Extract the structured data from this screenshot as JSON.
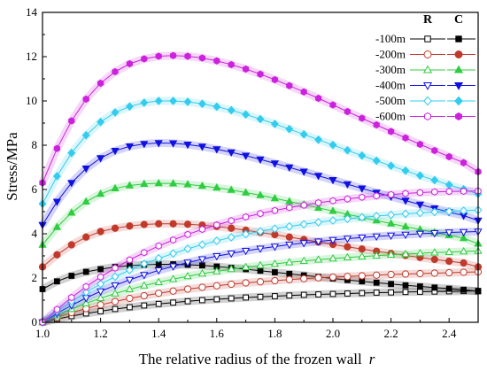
{
  "chart_data": {
    "type": "line",
    "xlabel": "The relative radius of the frozen wall",
    "xlabel_var": "r",
    "ylabel": "Stress/MPa",
    "xlim": [
      1.0,
      2.5
    ],
    "ylim": [
      0,
      14
    ],
    "xticks": [
      "1.0",
      "1.2",
      "1.4",
      "1.6",
      "1.8",
      "2.0",
      "2.2",
      "2.4"
    ],
    "yticks": [
      "0",
      "2",
      "4",
      "6",
      "8",
      "10",
      "12",
      "14"
    ],
    "legend_placement": "top-right",
    "legend_headers": {
      "r": "R",
      "c": "C"
    },
    "r_values": [
      1.0,
      1.05,
      1.1,
      1.15,
      1.2,
      1.25,
      1.3,
      1.35,
      1.4,
      1.45,
      1.5,
      1.55,
      1.6,
      1.65,
      1.7,
      1.75,
      1.8,
      1.85,
      1.9,
      1.95,
      2.0,
      2.05,
      2.1,
      2.15,
      2.2,
      2.25,
      2.3,
      2.35,
      2.4,
      2.45,
      2.5
    ],
    "series": [
      {
        "name": "-100m",
        "color": "#000000",
        "R": [
          0.0,
          0.15,
          0.28,
          0.4,
          0.5,
          0.6,
          0.68,
          0.76,
          0.83,
          0.89,
          0.95,
          1.0,
          1.04,
          1.08,
          1.12,
          1.15,
          1.18,
          1.21,
          1.24,
          1.26,
          1.28,
          1.3,
          1.32,
          1.34,
          1.35,
          1.37,
          1.38,
          1.39,
          1.4,
          1.41,
          1.42
        ],
        "C": [
          1.5,
          1.85,
          2.1,
          2.28,
          2.4,
          2.5,
          2.56,
          2.6,
          2.62,
          2.62,
          2.6,
          2.57,
          2.52,
          2.46,
          2.4,
          2.33,
          2.26,
          2.19,
          2.12,
          2.05,
          1.98,
          1.91,
          1.85,
          1.79,
          1.73,
          1.67,
          1.62,
          1.57,
          1.52,
          1.47,
          1.4
        ]
      },
      {
        "name": "-200m",
        "color": "#c0392b",
        "R": [
          0.0,
          0.23,
          0.44,
          0.62,
          0.79,
          0.94,
          1.08,
          1.2,
          1.31,
          1.41,
          1.5,
          1.58,
          1.65,
          1.72,
          1.78,
          1.83,
          1.88,
          1.93,
          1.97,
          2.01,
          2.04,
          2.07,
          2.1,
          2.13,
          2.16,
          2.18,
          2.2,
          2.22,
          2.24,
          2.26,
          2.28
        ],
        "C": [
          2.5,
          3.05,
          3.5,
          3.85,
          4.1,
          4.25,
          4.35,
          4.42,
          4.45,
          4.45,
          4.43,
          4.39,
          4.33,
          4.25,
          4.16,
          4.06,
          3.96,
          3.85,
          3.74,
          3.63,
          3.52,
          3.41,
          3.31,
          3.21,
          3.11,
          3.02,
          2.93,
          2.84,
          2.76,
          2.68,
          2.5
        ]
      },
      {
        "name": "-300m",
        "color": "#2ecc40",
        "R": [
          0.0,
          0.31,
          0.6,
          0.86,
          1.09,
          1.3,
          1.49,
          1.66,
          1.81,
          1.95,
          2.08,
          2.2,
          2.3,
          2.4,
          2.49,
          2.57,
          2.64,
          2.71,
          2.77,
          2.83,
          2.88,
          2.93,
          2.97,
          3.01,
          3.05,
          3.08,
          3.12,
          3.15,
          3.17,
          3.2,
          3.22
        ],
        "C": [
          3.5,
          4.3,
          4.95,
          5.45,
          5.8,
          6.05,
          6.18,
          6.25,
          6.28,
          6.27,
          6.23,
          6.16,
          6.08,
          5.98,
          5.86,
          5.74,
          5.6,
          5.46,
          5.32,
          5.17,
          5.03,
          4.88,
          4.74,
          4.6,
          4.46,
          4.32,
          4.19,
          4.06,
          3.93,
          3.8,
          3.55
        ]
      },
      {
        "name": "-400m",
        "color": "#1010e0",
        "R": [
          0.0,
          0.4,
          0.77,
          1.1,
          1.4,
          1.67,
          1.92,
          2.14,
          2.35,
          2.53,
          2.7,
          2.85,
          2.99,
          3.11,
          3.23,
          3.33,
          3.42,
          3.51,
          3.58,
          3.65,
          3.72,
          3.78,
          3.83,
          3.88,
          3.92,
          3.96,
          4.0,
          4.03,
          4.06,
          4.08,
          4.1
        ],
        "C": [
          4.4,
          5.45,
          6.3,
          6.95,
          7.42,
          7.75,
          7.95,
          8.06,
          8.1,
          8.09,
          8.03,
          7.94,
          7.82,
          7.68,
          7.53,
          7.36,
          7.18,
          7.0,
          6.81,
          6.62,
          6.43,
          6.24,
          6.05,
          5.86,
          5.68,
          5.5,
          5.32,
          5.15,
          4.98,
          4.82,
          4.6
        ]
      },
      {
        "name": "-500m",
        "color": "#33ccee",
        "R": [
          0.0,
          0.5,
          0.95,
          1.36,
          1.73,
          2.06,
          2.36,
          2.64,
          2.89,
          3.11,
          3.32,
          3.51,
          3.68,
          3.84,
          3.98,
          4.11,
          4.23,
          4.33,
          4.43,
          4.52,
          4.6,
          4.67,
          4.74,
          4.8,
          4.85,
          4.9,
          4.94,
          4.98,
          5.01,
          5.04,
          5.07
        ],
        "C": [
          5.35,
          6.6,
          7.65,
          8.45,
          9.05,
          9.48,
          9.75,
          9.92,
          10.0,
          10.0,
          9.96,
          9.87,
          9.74,
          9.58,
          9.39,
          9.18,
          8.96,
          8.73,
          8.49,
          8.25,
          8.01,
          7.77,
          7.53,
          7.3,
          7.07,
          6.85,
          6.63,
          6.42,
          6.21,
          6.01,
          5.8
        ]
      },
      {
        "name": "-600m",
        "color": "#cc22dd",
        "R": [
          0.0,
          0.58,
          1.12,
          1.61,
          2.05,
          2.45,
          2.82,
          3.15,
          3.45,
          3.72,
          3.97,
          4.2,
          4.4,
          4.59,
          4.76,
          4.91,
          5.05,
          5.18,
          5.29,
          5.4,
          5.49,
          5.57,
          5.65,
          5.71,
          5.77,
          5.82,
          5.86,
          5.89,
          5.91,
          5.92,
          5.93
        ],
        "C": [
          6.3,
          7.85,
          9.1,
          10.08,
          10.8,
          11.32,
          11.68,
          11.9,
          12.02,
          12.05,
          12.02,
          11.94,
          11.81,
          11.64,
          11.44,
          11.21,
          10.96,
          10.69,
          10.41,
          10.12,
          9.82,
          9.52,
          9.22,
          8.92,
          8.62,
          8.33,
          8.04,
          7.76,
          7.48,
          7.21,
          6.8
        ]
      }
    ]
  }
}
